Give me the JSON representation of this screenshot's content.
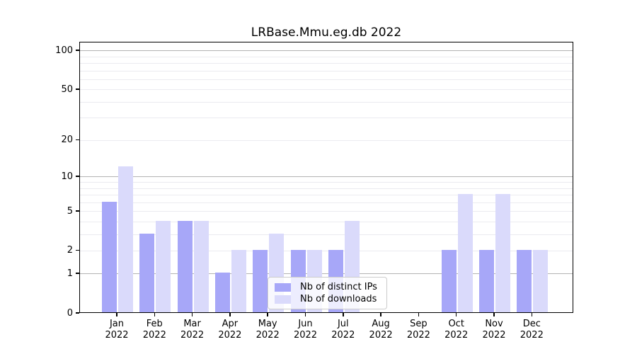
{
  "title": "LRBase.Mmu.eg.db 2022",
  "chart_data": {
    "type": "bar",
    "title": "LRBase.Mmu.eg.db 2022",
    "categories": [
      "Jan",
      "Feb",
      "Mar",
      "Apr",
      "May",
      "Jun",
      "Jul",
      "Aug",
      "Sep",
      "Oct",
      "Nov",
      "Dec"
    ],
    "year_label": "2022",
    "series": [
      {
        "name": "Nb of distinct IPs",
        "color": "#a7a7f8",
        "values": [
          6,
          3,
          4,
          1,
          2,
          2,
          2,
          0,
          0,
          2,
          2,
          2
        ]
      },
      {
        "name": "Nb of downloads",
        "color": "#dadafb",
        "values": [
          12,
          4,
          4,
          2,
          3,
          2,
          4,
          0,
          0,
          7,
          7,
          2
        ]
      }
    ],
    "yscale": "log1p",
    "ylim": [
      0,
      117
    ],
    "y_tick_labels": [
      "0",
      "1",
      "2",
      "5",
      "10",
      "20",
      "50",
      "100"
    ],
    "y_tick_values": [
      0,
      1,
      2,
      5,
      10,
      20,
      50,
      100
    ],
    "major_gridlines": [
      1,
      10,
      100
    ],
    "minor_gridlines": [
      2,
      3,
      4,
      5,
      6,
      7,
      8,
      9,
      20,
      30,
      40,
      50,
      60,
      70,
      80,
      90
    ],
    "grid": true,
    "legend_position": "lower center"
  },
  "legend": {
    "items": [
      {
        "label": "Nb of distinct IPs",
        "color": "#a7a7f8"
      },
      {
        "label": "Nb of downloads",
        "color": "#dadafb"
      }
    ]
  },
  "colors": {
    "background": "#ffffff",
    "axis": "#000000",
    "major_grid": "#b3b3b3",
    "minor_grid": "#ebebf0",
    "text": "#000000"
  }
}
